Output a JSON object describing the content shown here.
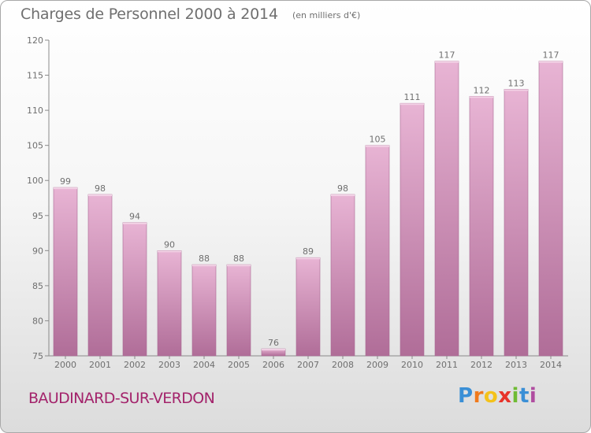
{
  "title": "Charges de Personnel 2000 à 2014",
  "subtitle": "(en milliers d'€)",
  "place": "BAUDINARD-SUR-VERDON",
  "logo": {
    "letters": [
      "P",
      "r",
      "o",
      "x",
      "i",
      "t",
      "i"
    ],
    "colors": [
      "#3a8fd6",
      "#f07a1c",
      "#f4c21a",
      "#e8332a",
      "#6fbb34",
      "#3a8fd6",
      "#b04da0"
    ]
  },
  "colors": {
    "bar_light": "#e8b4d4",
    "bar_dark": "#b06d98",
    "text": "#6f6f6f",
    "accent": "#a3236b"
  },
  "chart_data": {
    "type": "bar",
    "categories": [
      "2000",
      "2001",
      "2002",
      "2003",
      "2004",
      "2005",
      "2006",
      "2007",
      "2008",
      "2009",
      "2010",
      "2011",
      "2012",
      "2013",
      "2014"
    ],
    "values": [
      99,
      98,
      94,
      90,
      88,
      88,
      76,
      89,
      98,
      105,
      111,
      117,
      112,
      113,
      117
    ],
    "title": "Charges de Personnel 2000 à 2014",
    "xlabel": "",
    "ylabel": "",
    "ylim": [
      75,
      120
    ],
    "yticks": [
      75,
      80,
      85,
      90,
      95,
      100,
      105,
      110,
      115,
      120
    ],
    "grid": false,
    "legend": "none"
  }
}
